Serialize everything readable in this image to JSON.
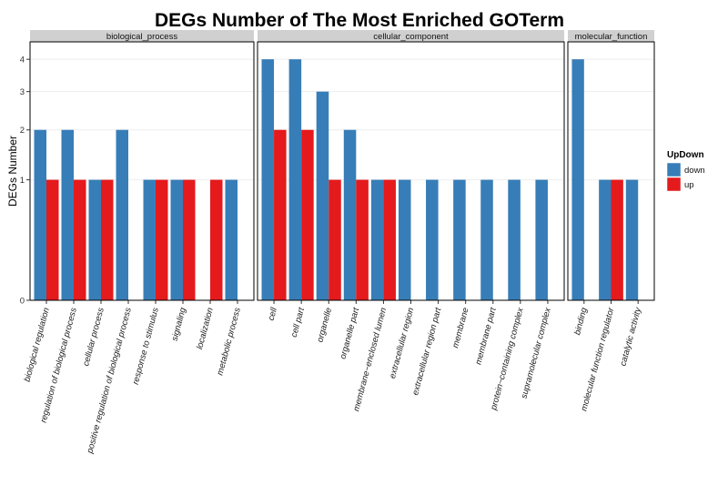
{
  "chart_data": {
    "type": "bar",
    "title": "DEGs Number of The Most Enriched GOTerm",
    "ylabel": "DEGs Number",
    "xlabel": "",
    "y_scale": "sqrt",
    "y_ticks": [
      0,
      1,
      2,
      3,
      4
    ],
    "ylim": [
      0,
      4.6
    ],
    "grid": true,
    "legend": {
      "title": "UpDown",
      "placement": "right",
      "entries": [
        {
          "name": "down",
          "color": "#377EB8"
        },
        {
          "name": "up",
          "color": "#E41A1C"
        }
      ]
    },
    "series": [
      {
        "name": "down",
        "color": "#377EB8"
      },
      {
        "name": "up",
        "color": "#E41A1C"
      }
    ],
    "facets": [
      {
        "name": "biological_process",
        "categories": [
          {
            "label": "biological regulation",
            "down": 2,
            "up": 1
          },
          {
            "label": "regulation of biological process",
            "down": 2,
            "up": 1
          },
          {
            "label": "cellular process",
            "down": 1,
            "up": 1
          },
          {
            "label": "positive regulation of biological process",
            "down": 2,
            "up": 0
          },
          {
            "label": "response to stimulus",
            "down": 1,
            "up": 1
          },
          {
            "label": "signaling",
            "down": 1,
            "up": 1
          },
          {
            "label": "localization",
            "down": 0,
            "up": 1
          },
          {
            "label": "metabolic process",
            "down": 1,
            "up": 0
          }
        ]
      },
      {
        "name": "cellular_component",
        "categories": [
          {
            "label": "cell",
            "down": 4,
            "up": 2
          },
          {
            "label": "cell part",
            "down": 4,
            "up": 2
          },
          {
            "label": "organelle",
            "down": 3,
            "up": 1
          },
          {
            "label": "organelle part",
            "down": 2,
            "up": 1
          },
          {
            "label": "membrane−enclosed lumen",
            "down": 1,
            "up": 1
          },
          {
            "label": "extracellular region",
            "down": 1,
            "up": 0
          },
          {
            "label": "extracellular region part",
            "down": 1,
            "up": 0
          },
          {
            "label": "membrane",
            "down": 1,
            "up": 0
          },
          {
            "label": "membrane part",
            "down": 1,
            "up": 0
          },
          {
            "label": "protein−containing complex",
            "down": 1,
            "up": 0
          },
          {
            "label": "supramolecular complex",
            "down": 1,
            "up": 0
          }
        ]
      },
      {
        "name": "molecular_function",
        "categories": [
          {
            "label": "binding",
            "down": 4,
            "up": 0
          },
          {
            "label": "molecular function regulator",
            "down": 1,
            "up": 1
          },
          {
            "label": "catalytic activity",
            "down": 1,
            "up": 0
          }
        ]
      }
    ]
  }
}
